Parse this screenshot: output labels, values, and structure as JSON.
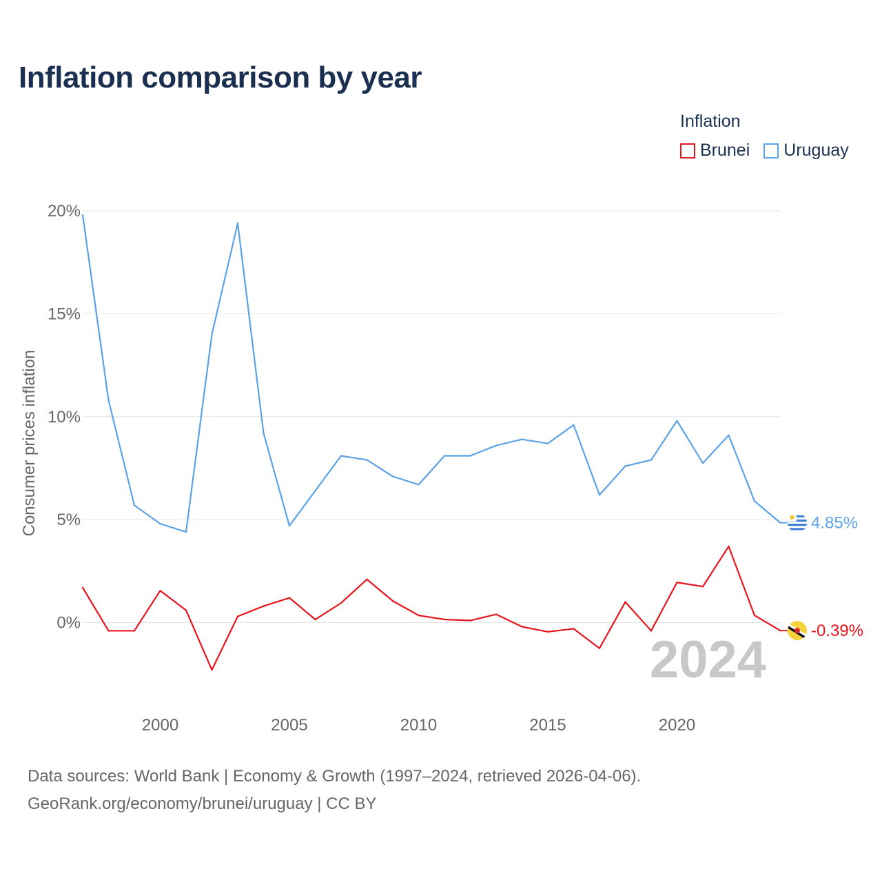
{
  "chart_data": {
    "type": "line",
    "title": "Inflation comparison by year",
    "legend_title": "Inflation",
    "ylabel": "Consumer prices inflation",
    "xlabel": "",
    "ylim": [
      -3.5,
      20
    ],
    "xlim": [
      1997,
      2024
    ],
    "yticks": [
      0,
      5,
      10,
      15,
      20
    ],
    "ytick_labels": [
      "0%",
      "5%",
      "10%",
      "15%",
      "20%"
    ],
    "xticks": [
      2000,
      2005,
      2010,
      2015,
      2020
    ],
    "xtick_labels": [
      "2000",
      "2005",
      "2010",
      "2015",
      "2020"
    ],
    "watermark_year": "2024",
    "x": [
      1997,
      1998,
      1999,
      2000,
      2001,
      2002,
      2003,
      2004,
      2005,
      2006,
      2007,
      2008,
      2009,
      2010,
      2011,
      2012,
      2013,
      2014,
      2015,
      2016,
      2017,
      2018,
      2019,
      2020,
      2021,
      2022,
      2023,
      2024
    ],
    "series": [
      {
        "name": "Brunei",
        "color": "#e8141b",
        "end_label": "-0.39%",
        "flag_icon": "brunei-flag-icon",
        "values": [
          1.7,
          -0.4,
          -0.4,
          1.55,
          0.6,
          -2.3,
          0.3,
          0.8,
          1.2,
          0.15,
          0.95,
          2.1,
          1.05,
          0.35,
          0.15,
          0.1,
          0.4,
          -0.2,
          -0.45,
          -0.3,
          -1.25,
          1.0,
          -0.4,
          1.95,
          1.75,
          3.7,
          0.35,
          -0.39
        ]
      },
      {
        "name": "Uruguay",
        "color": "#5ba2e6",
        "end_label": "4.85%",
        "flag_icon": "uruguay-flag-icon",
        "values": [
          19.8,
          10.8,
          5.7,
          4.8,
          4.4,
          14.0,
          19.4,
          9.2,
          4.7,
          6.4,
          8.1,
          7.9,
          7.1,
          6.7,
          8.1,
          8.1,
          8.6,
          8.9,
          8.7,
          9.6,
          6.2,
          7.6,
          7.9,
          9.8,
          7.75,
          9.1,
          5.9,
          4.85
        ]
      }
    ]
  },
  "footer": {
    "line1": "Data sources: World Bank | Economy & Growth (1997–2024, retrieved 2026-04-06).",
    "line2": "GeoRank.org/economy/brunei/uruguay | CC BY"
  }
}
